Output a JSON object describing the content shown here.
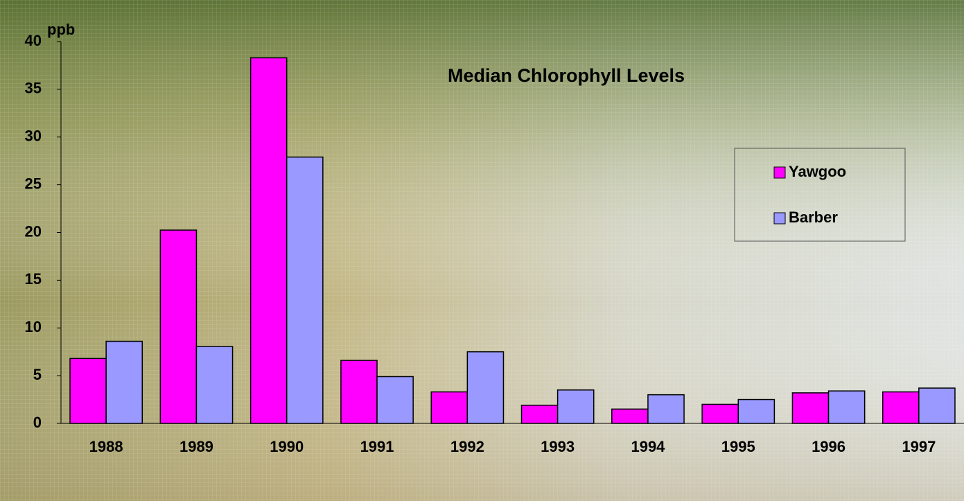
{
  "chart_data": {
    "type": "bar",
    "title": "Median Chlorophyll Levels",
    "y_label": "ppb",
    "categories": [
      "1988",
      "1989",
      "1990",
      "1991",
      "1992",
      "1993",
      "1994",
      "1995",
      "1996",
      "1997"
    ],
    "series": [
      {
        "name": "Yawgoo",
        "color": "#ff00ff",
        "values": [
          6.8,
          20.25,
          38.3,
          6.6,
          3.3,
          1.9,
          1.5,
          2.0,
          3.2,
          3.3
        ]
      },
      {
        "name": "Barber",
        "color": "#9999ff",
        "values": [
          8.6,
          8.06,
          27.9,
          4.9,
          7.5,
          3.5,
          3.0,
          2.5,
          3.4,
          3.7
        ]
      }
    ],
    "ylim": [
      0,
      40
    ],
    "yticks": [
      0,
      5,
      10,
      15,
      20,
      25,
      30,
      35,
      40
    ],
    "grid": false
  }
}
